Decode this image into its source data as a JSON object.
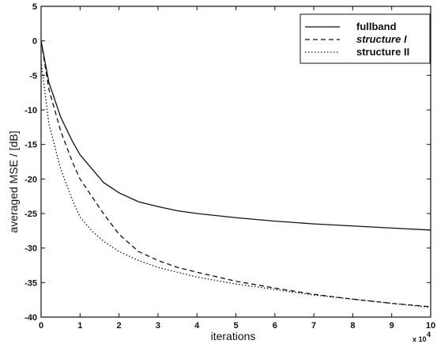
{
  "chart_data": {
    "type": "line",
    "xlabel": "iterations",
    "ylabel": "averaged MSE / [dB]",
    "x_multiplier_label": "x 10",
    "x_multiplier_exp": "4",
    "xlim": [
      0,
      10
    ],
    "ylim": [
      -40,
      5
    ],
    "x_ticks": [
      "0",
      "1",
      "2",
      "3",
      "4",
      "5",
      "6",
      "7",
      "8",
      "9",
      "10"
    ],
    "y_ticks": [
      "5",
      "0",
      "-5",
      "-10",
      "-15",
      "-20",
      "-25",
      "-30",
      "-35",
      "-40"
    ],
    "grid": false,
    "legend_position": "top-right",
    "series": [
      {
        "name": "fullband",
        "style": "solid",
        "x": [
          0,
          0.2,
          0.5,
          0.8,
          1.0,
          1.3,
          1.6,
          2.0,
          2.5,
          3.0,
          3.5,
          4.0,
          5.0,
          6.0,
          7.0,
          8.0,
          9.0,
          10.0
        ],
        "y": [
          0,
          -6,
          -11,
          -14.5,
          -16.5,
          -18.5,
          -20.5,
          -22,
          -23.3,
          -24,
          -24.6,
          -25,
          -25.6,
          -26.1,
          -26.5,
          -26.8,
          -27.1,
          -27.4
        ]
      },
      {
        "name": "structure I",
        "style": "dashed",
        "x": [
          0,
          0.2,
          0.5,
          0.8,
          1.0,
          1.3,
          1.6,
          2.0,
          2.5,
          3.0,
          3.5,
          4.0,
          5.0,
          6.0,
          7.0,
          8.0,
          9.0,
          10.0
        ],
        "y": [
          0,
          -7,
          -13,
          -17.5,
          -20,
          -22.5,
          -25,
          -28,
          -30.5,
          -31.8,
          -32.8,
          -33.5,
          -34.8,
          -35.8,
          -36.7,
          -37.4,
          -38,
          -38.5
        ]
      },
      {
        "name": "structure II",
        "style": "dotted",
        "x": [
          0,
          0.2,
          0.5,
          0.8,
          1.0,
          1.3,
          1.6,
          2.0,
          2.5,
          3.0,
          3.5,
          4.0,
          5.0,
          6.0,
          7.0,
          8.0,
          9.0,
          10.0
        ],
        "y": [
          -3,
          -12,
          -18.5,
          -23,
          -25.5,
          -27.5,
          -29,
          -30.5,
          -31.8,
          -32.8,
          -33.5,
          -34.2,
          -35.2,
          -36,
          -36.8,
          -37.4,
          -38,
          -38.6
        ]
      }
    ]
  }
}
